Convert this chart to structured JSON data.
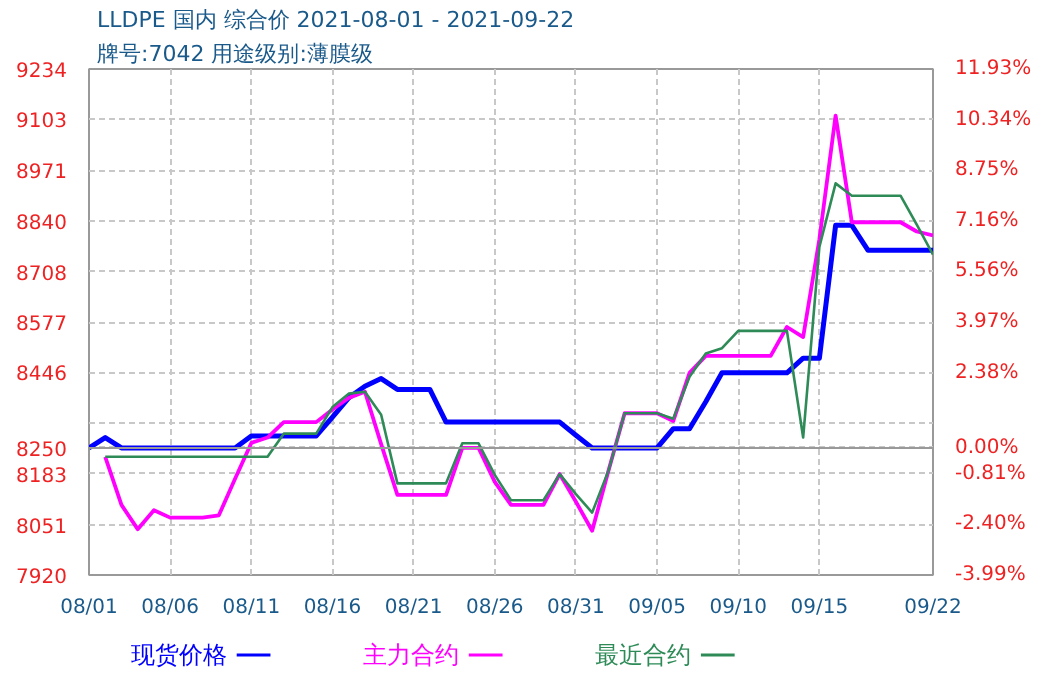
{
  "chart_data": {
    "type": "line",
    "title": "LLDPE 国内 综合价 2021-08-01 - 2021-09-22",
    "subtitle": "牌号:7042 用途级别:薄膜级",
    "x": [
      "2021-08-01",
      "2021-08-02",
      "2021-08-03",
      "2021-08-04",
      "2021-08-05",
      "2021-08-06",
      "2021-08-07",
      "2021-08-08",
      "2021-08-09",
      "2021-08-10",
      "2021-08-11",
      "2021-08-12",
      "2021-08-13",
      "2021-08-14",
      "2021-08-15",
      "2021-08-16",
      "2021-08-17",
      "2021-08-18",
      "2021-08-19",
      "2021-08-20",
      "2021-08-21",
      "2021-08-22",
      "2021-08-23",
      "2021-08-24",
      "2021-08-25",
      "2021-08-26",
      "2021-08-27",
      "2021-08-28",
      "2021-08-29",
      "2021-08-30",
      "2021-08-31",
      "2021-09-01",
      "2021-09-02",
      "2021-09-03",
      "2021-09-04",
      "2021-09-05",
      "2021-09-06",
      "2021-09-07",
      "2021-09-08",
      "2021-09-09",
      "2021-09-10",
      "2021-09-11",
      "2021-09-12",
      "2021-09-13",
      "2021-09-14",
      "2021-09-15",
      "2021-09-16",
      "2021-09-17",
      "2021-09-18",
      "2021-09-19",
      "2021-09-20",
      "2021-09-21",
      "2021-09-22"
    ],
    "series": [
      {
        "name": "现货价格",
        "color": "#0000ff",
        "values": [
          8250,
          8277,
          8250,
          8250,
          8250,
          8250,
          8250,
          8250,
          8250,
          8250,
          8281,
          8281,
          8281,
          8281,
          8281,
          8330,
          8380,
          8410,
          8430,
          8402,
          8402,
          8402,
          8317,
          8317,
          8317,
          8317,
          8317,
          8317,
          8317,
          8317,
          8283,
          8250,
          8250,
          8250,
          8250,
          8250,
          8300,
          8300,
          8370,
          8445,
          8445,
          8445,
          8445,
          8445,
          8483,
          8483,
          8828,
          8828,
          8763,
          8763,
          8763,
          8763,
          8763
        ]
      },
      {
        "name": "主力合约",
        "color": "#ff00ff",
        "values": [
          null,
          8227,
          8102,
          8039,
          8088,
          8069,
          8069,
          8069,
          8075,
          8170,
          8263,
          8277,
          8317,
          8317,
          8317,
          8350,
          8380,
          8396,
          8260,
          8128,
          8128,
          8128,
          8128,
          8250,
          8250,
          8162,
          8102,
          8102,
          8102,
          8182,
          8110,
          8035,
          8190,
          8340,
          8340,
          8340,
          8320,
          8445,
          8489,
          8489,
          8489,
          8489,
          8489,
          8564,
          8538,
          8792,
          9113,
          8836,
          8836,
          8836,
          8836,
          8812,
          8802
        ]
      },
      {
        "name": "最近合约",
        "color": "#2e8b57",
        "values": [
          null,
          8227,
          8227,
          8227,
          8227,
          8227,
          8227,
          8227,
          8227,
          8227,
          8227,
          8227,
          8287,
          8287,
          8287,
          8356,
          8391,
          8396,
          8336,
          8158,
          8158,
          8158,
          8158,
          8262,
          8262,
          8180,
          8114,
          8114,
          8114,
          8182,
          8130,
          8082,
          8190,
          8340,
          8340,
          8340,
          8326,
          8435,
          8495,
          8509,
          8554,
          8554,
          8554,
          8554,
          8277,
          8772,
          8937,
          8905,
          8905,
          8905,
          8905,
          8830,
          8752
        ]
      }
    ],
    "xlim": [
      "2021-08-01",
      "2021-09-22"
    ],
    "xticks": [
      {
        "value": "2021-08-01",
        "label": "08/01"
      },
      {
        "value": "2021-08-06",
        "label": "08/06"
      },
      {
        "value": "2021-08-11",
        "label": "08/11"
      },
      {
        "value": "2021-08-16",
        "label": "08/16"
      },
      {
        "value": "2021-08-21",
        "label": "08/21"
      },
      {
        "value": "2021-08-26",
        "label": "08/26"
      },
      {
        "value": "2021-08-31",
        "label": "08/31"
      },
      {
        "value": "2021-09-05",
        "label": "09/05"
      },
      {
        "value": "2021-09-10",
        "label": "09/10"
      },
      {
        "value": "2021-09-15",
        "label": "09/15"
      },
      {
        "value": "2021-09-22",
        "label": "09/22"
      }
    ],
    "ylim": [
      7920,
      9234
    ],
    "yticks": [
      9234,
      9103,
      8971,
      8840,
      8708,
      8577,
      8446,
      {
        "value": 8315,
        "label": null
      },
      8250,
      8183,
      8051,
      7920
    ],
    "y2lim": [
      -3.99,
      11.93
    ],
    "y2ticks": [
      {
        "value": 11.93,
        "label": "11.93%"
      },
      {
        "value": 10.34,
        "label": "10.34%"
      },
      {
        "value": 8.75,
        "label": "8.75%"
      },
      {
        "value": 7.16,
        "label": "7.16%"
      },
      {
        "value": 5.56,
        "label": "5.56%"
      },
      {
        "value": 3.97,
        "label": "3.97%"
      },
      {
        "value": 2.38,
        "label": "2.38%"
      },
      {
        "value": 0.79,
        "label": null
      },
      {
        "value": 0.0,
        "label": "0.00%"
      },
      {
        "value": -0.81,
        "label": "-0.81%"
      },
      {
        "value": -2.4,
        "label": "-2.40%"
      },
      {
        "value": -3.99,
        "label": "-3.99%"
      }
    ],
    "ref_lines": [
      {
        "axis": "y",
        "value": 8250,
        "label": null,
        "color": "#999999"
      }
    ],
    "grid": true,
    "legend": "bottom",
    "marker": "none",
    "line_style": "solid"
  }
}
